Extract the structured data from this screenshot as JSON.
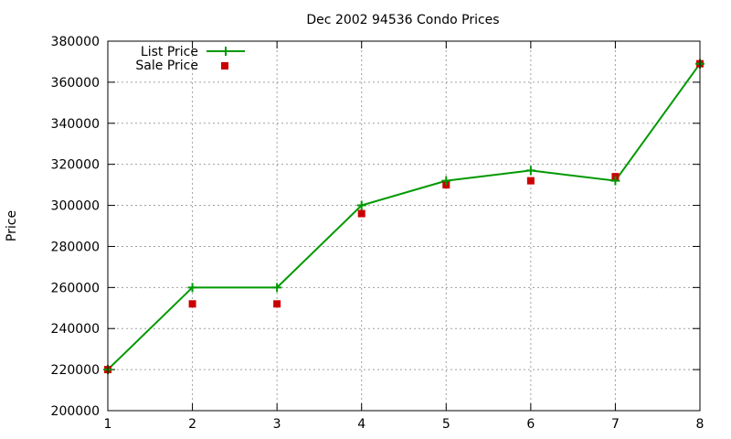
{
  "chart_data": {
    "type": "line",
    "title": "Dec 2002 94536 Condo Prices",
    "ylabel": "Price",
    "x": [
      1,
      2,
      3,
      4,
      5,
      6,
      7,
      8
    ],
    "x_ticks": [
      "1",
      "2",
      "3",
      "4",
      "5",
      "6",
      "7",
      "8"
    ],
    "y_ticks": [
      "200000",
      "220000",
      "240000",
      "260000",
      "280000",
      "300000",
      "320000",
      "340000",
      "360000",
      "380000"
    ],
    "xlim": [
      1,
      8
    ],
    "ylim": [
      200000,
      380000
    ],
    "grid": true,
    "legend_position": "top-left",
    "series": [
      {
        "name": "List Price",
        "style": "line-with-plus-markers",
        "color": "#009900",
        "values": [
          220000,
          260000,
          260000,
          300000,
          312000,
          317000,
          312000,
          369000
        ]
      },
      {
        "name": "Sale Price",
        "style": "square-markers",
        "color": "#cc0000",
        "values": [
          220000,
          252000,
          252000,
          296000,
          310000,
          312000,
          314000,
          369000
        ]
      }
    ]
  }
}
